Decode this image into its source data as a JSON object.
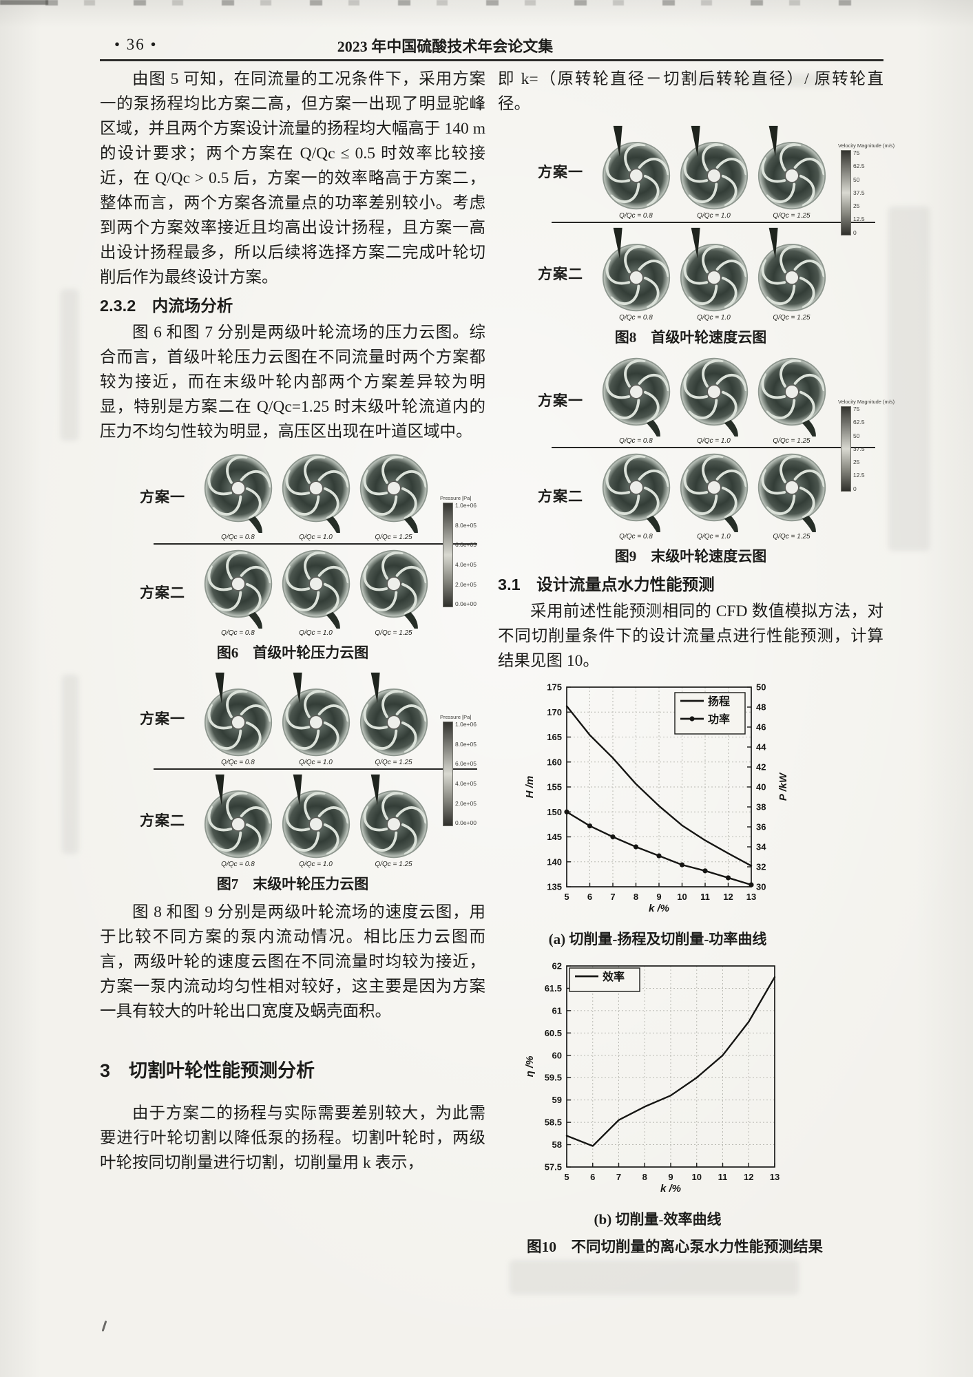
{
  "page": {
    "page_number": "• 36 •",
    "header_title": "2023 年中国硫酸技术年会论文集"
  },
  "left": {
    "para1": "由图 5 可知，在同流量的工况条件下，采用方案一的泵扬程均比方案二高，但方案一出现了明显驼峰区域，并且两个方案设计流量的扬程均大幅高于 140 m 的设计要求；两个方案在 Q/Qc ≤ 0.5 时效率比较接近，在 Q/Qc > 0.5 后，方案一的效率略高于方案二，整体而言，两个方案各流量点的功率差别较小。考虑到两个方案效率接近且均高出设计扬程，且方案一高出设计扬程最多，所以后续将选择方案二完成叶轮切削后作为最终设计方案。",
    "heading_232": "2.3.2　内流场分析",
    "para2": "图 6 和图 7 分别是两级叶轮流场的压力云图。综合而言，首级叶轮压力云图在不同流量时两个方案都较为接近，而在末级叶轮内部两个方案差异较为明显，特别是方案二在 Q/Qc=1.25 时末级叶轮流道内的压力不均匀性较为明显，高压区出现在叶道区域中。",
    "para3": "图 8 和图 9 分别是两级叶轮流场的速度云图，用于比较不同方案的泵内流动情况。相比压力云图而言，两级叶轮的速度云图在不同流量时均较为接近，方案一泵内流动均匀性相对较好，这主要是因为方案一具有较大的叶轮出口宽度及蜗壳面积。",
    "heading_3": "3　切割叶轮性能预测分析",
    "para4": "由于方案二的扬程与实际需要差别较大，为此需要进行叶轮切割以降低泵的扬程。切割叶轮时，两级叶轮按同切削量进行切割，切削量用 k 表示，"
  },
  "right": {
    "para1": "即 k=（原转轮直径－切割后转轮直径）/ 原转轮直径。",
    "heading_31": "3.1　设计流量点水力性能预测",
    "para2": "采用前述性能预测相同的 CFD 数值模拟方法，对不同切削量条件下的设计流量点进行性能预测，计算结果见图 10。"
  },
  "figures": {
    "scheme1": "方案一",
    "scheme2": "方案二",
    "q_labels": [
      "Q/Qc = 0.8",
      "Q/Qc = 1.0",
      "Q/Qc = 1.25"
    ],
    "pressure_colorbar": {
      "title": "Pressure [Pa]",
      "ticks": [
        "1.0e+06",
        "8.0e+05",
        "6.0e+05",
        "4.0e+05",
        "2.0e+05",
        "0.0e+00"
      ]
    },
    "velocity_colorbar": {
      "title": "Velocity Magnitude (m/s)",
      "ticks": [
        "75",
        "62.5",
        "50",
        "37.5",
        "25",
        "12.5",
        "0"
      ]
    },
    "fig6_caption": "图6　首级叶轮压力云图",
    "fig7_caption": "图7　末级叶轮压力云图",
    "fig8_caption": "图8　首级叶轮速度云图",
    "fig9_caption": "图9　末级叶轮速度云图",
    "fig10_caption": "图10　不同切削量的离心泵水力性能预测结果"
  },
  "chart_data": [
    {
      "type": "line",
      "title": "(a) 切削量-扬程及切削量-功率曲线",
      "xlabel": "k /%",
      "ylabel_left": "H /m",
      "ylabel_right": "P /kW",
      "x": [
        5,
        6,
        7,
        8,
        9,
        10,
        11,
        12,
        13
      ],
      "xlim": [
        5,
        13
      ],
      "ylim_left": [
        135,
        175
      ],
      "ylim_right": [
        30,
        50
      ],
      "yticks_left": [
        135,
        140,
        145,
        150,
        155,
        160,
        165,
        170,
        175
      ],
      "yticks_right": [
        30,
        32,
        34,
        36,
        38,
        40,
        42,
        44,
        46,
        48,
        50
      ],
      "grid": true,
      "legend_position": "top-right",
      "series": [
        {
          "name": "扬程",
          "axis": "left",
          "marker": "none",
          "values": [
            171.2,
            165.4,
            160.8,
            155.6,
            151.2,
            147.3,
            144.3,
            141.7,
            139.2
          ]
        },
        {
          "name": "功率",
          "axis": "right",
          "marker": "dot",
          "values": [
            37.5,
            36.1,
            35.0,
            34.0,
            33.1,
            32.2,
            31.6,
            30.9,
            30.2
          ]
        }
      ]
    },
    {
      "type": "line",
      "title": "(b) 切削量-效率曲线",
      "xlabel": "k /%",
      "ylabel": "η /%",
      "x": [
        5,
        6,
        7,
        8,
        9,
        10,
        11,
        12,
        13
      ],
      "xlim": [
        5,
        13
      ],
      "ylim": [
        57.5,
        62
      ],
      "yticks": [
        57.5,
        58,
        58.5,
        59,
        59.5,
        60,
        60.5,
        61,
        61.5,
        62
      ],
      "grid": true,
      "legend_position": "top-left",
      "series": [
        {
          "name": "效率",
          "marker": "none",
          "values": [
            58.2,
            57.97,
            58.55,
            58.85,
            59.1,
            59.5,
            60.0,
            60.75,
            61.75
          ]
        }
      ]
    }
  ]
}
